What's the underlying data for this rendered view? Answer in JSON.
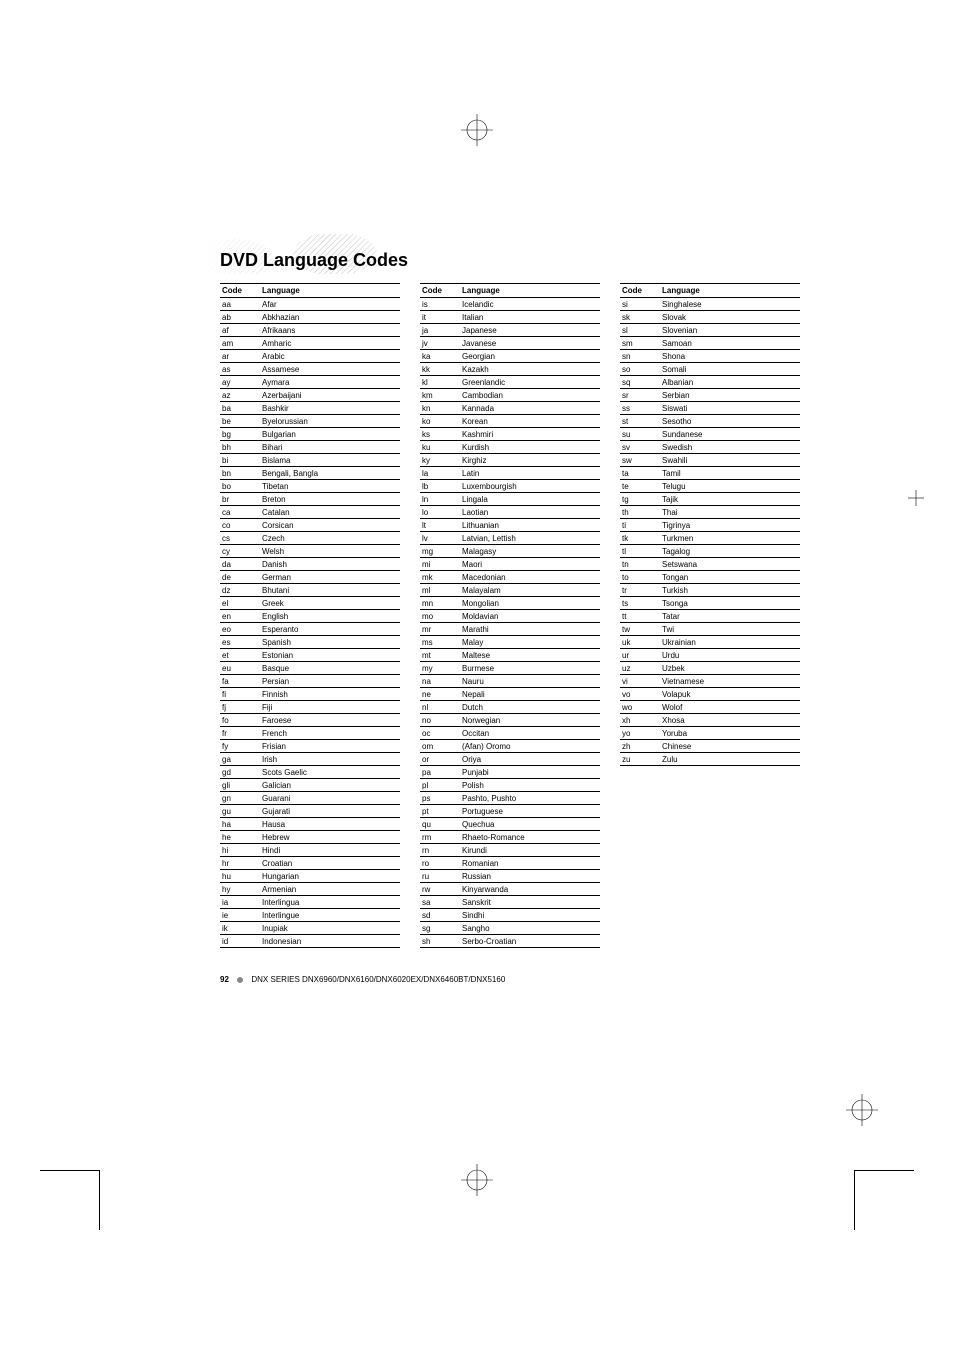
{
  "title": "DVD Language Codes",
  "highlight_color": "#dcdcdc",
  "text_color": "#000000",
  "table_header": {
    "code": "Code",
    "language": "Language"
  },
  "footer": {
    "page_number": "92",
    "series_text": "DNX SERIES   DNX6960/DNX6160/DNX6020EX/DNX6460BT/DNX5160"
  },
  "columns": [
    [
      {
        "code": "aa",
        "language": "Afar"
      },
      {
        "code": "ab",
        "language": "Abkhazian"
      },
      {
        "code": "af",
        "language": "Afrikaans"
      },
      {
        "code": "am",
        "language": "Amharic"
      },
      {
        "code": "ar",
        "language": "Arabic"
      },
      {
        "code": "as",
        "language": "Assamese"
      },
      {
        "code": "ay",
        "language": "Aymara"
      },
      {
        "code": "az",
        "language": "Azerbaijani"
      },
      {
        "code": "ba",
        "language": "Bashkir"
      },
      {
        "code": "be",
        "language": "Byelorussian"
      },
      {
        "code": "bg",
        "language": "Bulgarian"
      },
      {
        "code": "bh",
        "language": "Bihari"
      },
      {
        "code": "bi",
        "language": "Bislama"
      },
      {
        "code": "bn",
        "language": "Bengali, Bangla"
      },
      {
        "code": "bo",
        "language": "Tibetan"
      },
      {
        "code": "br",
        "language": "Breton"
      },
      {
        "code": "ca",
        "language": "Catalan"
      },
      {
        "code": "co",
        "language": "Corsican"
      },
      {
        "code": "cs",
        "language": "Czech"
      },
      {
        "code": "cy",
        "language": "Welsh"
      },
      {
        "code": "da",
        "language": "Danish"
      },
      {
        "code": "de",
        "language": "German"
      },
      {
        "code": "dz",
        "language": "Bhutani"
      },
      {
        "code": "el",
        "language": "Greek"
      },
      {
        "code": "en",
        "language": "English"
      },
      {
        "code": "eo",
        "language": "Esperanto"
      },
      {
        "code": "es",
        "language": "Spanish"
      },
      {
        "code": "et",
        "language": "Estonian"
      },
      {
        "code": "eu",
        "language": "Basque"
      },
      {
        "code": "fa",
        "language": "Persian"
      },
      {
        "code": "fi",
        "language": "Finnish"
      },
      {
        "code": "fj",
        "language": "Fiji"
      },
      {
        "code": "fo",
        "language": "Faroese"
      },
      {
        "code": "fr",
        "language": "French"
      },
      {
        "code": "fy",
        "language": "Frisian"
      },
      {
        "code": "ga",
        "language": "Irish"
      },
      {
        "code": "gd",
        "language": "Scots Gaelic"
      },
      {
        "code": "gli",
        "language": "Galician"
      },
      {
        "code": "gn",
        "language": "Guarani"
      },
      {
        "code": "gu",
        "language": "Gujarati"
      },
      {
        "code": "ha",
        "language": "Hausa"
      },
      {
        "code": "he",
        "language": "Hebrew"
      },
      {
        "code": "hi",
        "language": "Hindi"
      },
      {
        "code": "hr",
        "language": "Croatian"
      },
      {
        "code": "hu",
        "language": "Hungarian"
      },
      {
        "code": "hy",
        "language": "Armenian"
      },
      {
        "code": "ia",
        "language": "Interlingua"
      },
      {
        "code": "ie",
        "language": "Interlingue"
      },
      {
        "code": "ik",
        "language": "Inupiak"
      },
      {
        "code": "id",
        "language": "Indonesian"
      }
    ],
    [
      {
        "code": "is",
        "language": "Icelandic"
      },
      {
        "code": "it",
        "language": "Italian"
      },
      {
        "code": "ja",
        "language": "Japanese"
      },
      {
        "code": "jv",
        "language": "Javanese"
      },
      {
        "code": "ka",
        "language": "Georgian"
      },
      {
        "code": "kk",
        "language": "Kazakh"
      },
      {
        "code": "kl",
        "language": "Greenlandic"
      },
      {
        "code": "km",
        "language": "Cambodian"
      },
      {
        "code": "kn",
        "language": "Kannada"
      },
      {
        "code": "ko",
        "language": "Korean"
      },
      {
        "code": "ks",
        "language": "Kashmiri"
      },
      {
        "code": "ku",
        "language": "Kurdish"
      },
      {
        "code": "ky",
        "language": "Kirghiz"
      },
      {
        "code": "la",
        "language": "Latin"
      },
      {
        "code": "lb",
        "language": "Luxembourgish"
      },
      {
        "code": "ln",
        "language": "Lingala"
      },
      {
        "code": "lo",
        "language": "Laotian"
      },
      {
        "code": "lt",
        "language": "Lithuanian"
      },
      {
        "code": "lv",
        "language": "Latvian, Lettish"
      },
      {
        "code": "mg",
        "language": "Malagasy"
      },
      {
        "code": "mi",
        "language": "Maori"
      },
      {
        "code": "mk",
        "language": "Macedonian"
      },
      {
        "code": "ml",
        "language": "Malayalam"
      },
      {
        "code": "mn",
        "language": "Mongolian"
      },
      {
        "code": "mo",
        "language": "Moldavian"
      },
      {
        "code": "mr",
        "language": "Marathi"
      },
      {
        "code": "ms",
        "language": "Malay"
      },
      {
        "code": "mt",
        "language": "Maltese"
      },
      {
        "code": "my",
        "language": "Burmese"
      },
      {
        "code": "na",
        "language": "Nauru"
      },
      {
        "code": "ne",
        "language": "Nepali"
      },
      {
        "code": "nl",
        "language": "Dutch"
      },
      {
        "code": "no",
        "language": "Norwegian"
      },
      {
        "code": "oc",
        "language": "Occitan"
      },
      {
        "code": "om",
        "language": "(Afan) Oromo"
      },
      {
        "code": "or",
        "language": "Oriya"
      },
      {
        "code": "pa",
        "language": "Punjabi"
      },
      {
        "code": "pl",
        "language": "Polish"
      },
      {
        "code": "ps",
        "language": "Pashto, Pushto"
      },
      {
        "code": "pt",
        "language": "Portuguese"
      },
      {
        "code": "qu",
        "language": "Quechua"
      },
      {
        "code": "rm",
        "language": "Rhaeto-Romance"
      },
      {
        "code": "rn",
        "language": "Kirundi"
      },
      {
        "code": "ro",
        "language": "Romanian"
      },
      {
        "code": "ru",
        "language": "Russian"
      },
      {
        "code": "rw",
        "language": "Kinyarwanda"
      },
      {
        "code": "sa",
        "language": "Sanskrit"
      },
      {
        "code": "sd",
        "language": "Sindhi"
      },
      {
        "code": "sg",
        "language": "Sangho"
      },
      {
        "code": "sh",
        "language": "Serbo-Croatian"
      }
    ],
    [
      {
        "code": "si",
        "language": "Singhalese"
      },
      {
        "code": "sk",
        "language": "Slovak"
      },
      {
        "code": "sl",
        "language": "Slovenian"
      },
      {
        "code": "sm",
        "language": "Samoan"
      },
      {
        "code": "sn",
        "language": "Shona"
      },
      {
        "code": "so",
        "language": "Somali"
      },
      {
        "code": "sq",
        "language": "Albanian"
      },
      {
        "code": "sr",
        "language": "Serbian"
      },
      {
        "code": "ss",
        "language": "Siswati"
      },
      {
        "code": "st",
        "language": "Sesotho"
      },
      {
        "code": "su",
        "language": "Sundanese"
      },
      {
        "code": "sv",
        "language": "Swedish"
      },
      {
        "code": "sw",
        "language": "Swahili"
      },
      {
        "code": "ta",
        "language": "Tamil"
      },
      {
        "code": "te",
        "language": "Telugu"
      },
      {
        "code": "tg",
        "language": "Tajik"
      },
      {
        "code": "th",
        "language": "Thai"
      },
      {
        "code": "ti",
        "language": "Tigrinya"
      },
      {
        "code": "tk",
        "language": "Turkmen"
      },
      {
        "code": "tl",
        "language": "Tagalog"
      },
      {
        "code": "tn",
        "language": "Setswana"
      },
      {
        "code": "to",
        "language": "Tongan"
      },
      {
        "code": "tr",
        "language": "Turkish"
      },
      {
        "code": "ts",
        "language": "Tsonga"
      },
      {
        "code": "tt",
        "language": "Tatar"
      },
      {
        "code": "tw",
        "language": "Twi"
      },
      {
        "code": "uk",
        "language": "Ukrainian"
      },
      {
        "code": "ur",
        "language": "Urdu"
      },
      {
        "code": "uz",
        "language": "Uzbek"
      },
      {
        "code": "vi",
        "language": "Vietnamese"
      },
      {
        "code": "vo",
        "language": "Volapuk"
      },
      {
        "code": "wo",
        "language": "Wolof"
      },
      {
        "code": "xh",
        "language": "Xhosa"
      },
      {
        "code": "yo",
        "language": "Yoruba"
      },
      {
        "code": "zh",
        "language": "Chinese"
      },
      {
        "code": "zu",
        "language": "Zulu"
      }
    ]
  ]
}
